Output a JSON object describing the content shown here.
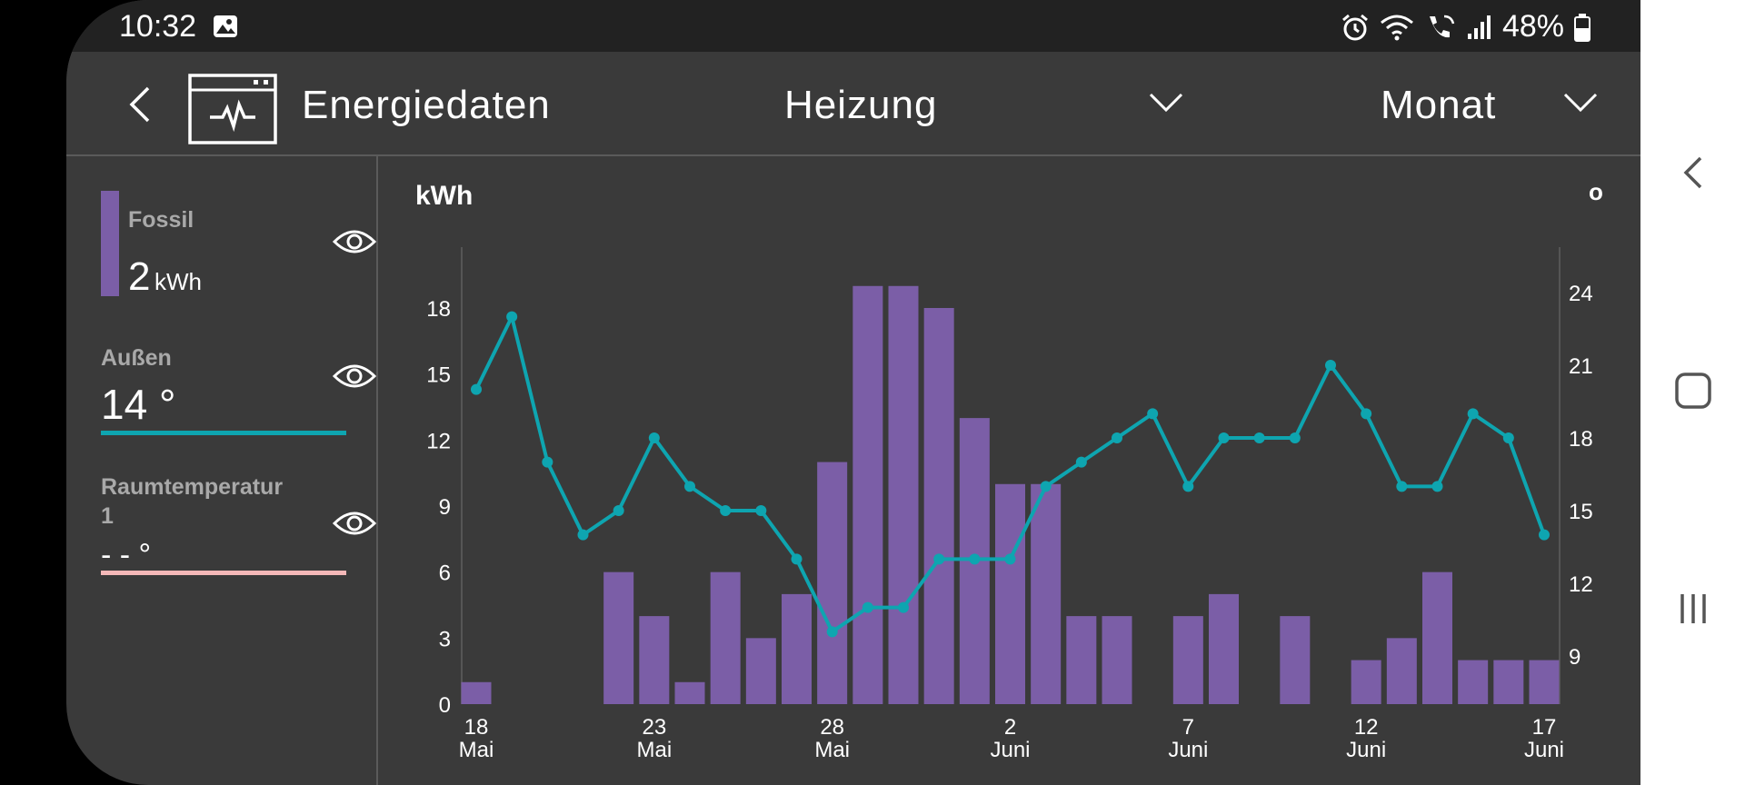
{
  "status_bar": {
    "time": "10:32",
    "battery": "48%",
    "icons": [
      "gallery-icon",
      "alarm-icon",
      "wifi-icon",
      "wifi-call-icon",
      "signal-icon",
      "battery-icon"
    ]
  },
  "header": {
    "title": "Energiedaten",
    "category": "Heizung",
    "period": "Monat",
    "icons": [
      "back-icon",
      "energy-monitor-icon",
      "chevron-down-icon"
    ]
  },
  "legend": {
    "fossil": {
      "label": "Fossil",
      "value": "2",
      "unit": "kWh",
      "color": "#7b5ea7"
    },
    "outside": {
      "label": "Außen",
      "value": "14 °",
      "color": "#0ea5b0"
    },
    "room": {
      "label": "Raumtemperatur 1",
      "value": "- - °",
      "color": "#f4b8b8"
    }
  },
  "colors": {
    "background": "#3a3a3a",
    "status_bar": "#222222",
    "bar": "#7b5ea7",
    "line": "#0ea5b0",
    "text_muted": "#a9a9a9"
  },
  "chart_data": {
    "type": "bar",
    "left_axis_label": "kWh",
    "right_axis_label": "o",
    "left_ticks": [
      "0",
      "3",
      "6",
      "9",
      "12",
      "15",
      "18"
    ],
    "right_ticks": [
      "9",
      "12",
      "15",
      "18",
      "21",
      "24"
    ],
    "ylim_left": [
      0,
      21
    ],
    "ylim_right": [
      7,
      26
    ],
    "x_ticks": [
      {
        "day": "18",
        "month": "Mai",
        "index": 0
      },
      {
        "day": "23",
        "month": "Mai",
        "index": 5
      },
      {
        "day": "28",
        "month": "Mai",
        "index": 10
      },
      {
        "day": "2",
        "month": "Juni",
        "index": 15
      },
      {
        "day": "7",
        "month": "Juni",
        "index": 20
      },
      {
        "day": "12",
        "month": "Juni",
        "index": 25
      },
      {
        "day": "17",
        "month": "Juni",
        "index": 30
      }
    ],
    "series": [
      {
        "type": "bar",
        "values": [
          1,
          0,
          0,
          0,
          6,
          4,
          1,
          6,
          3,
          5,
          11,
          19,
          19,
          18,
          13,
          10,
          10,
          4,
          4,
          0,
          4,
          5,
          0,
          4,
          0,
          2,
          3,
          6,
          2,
          2,
          2
        ]
      },
      {
        "type": "line",
        "values": [
          20,
          23,
          17,
          14,
          15,
          18,
          16,
          15,
          15,
          13,
          10,
          11,
          11,
          13,
          13,
          13,
          16,
          17,
          18,
          19,
          16,
          18,
          18,
          18,
          21,
          19,
          16,
          16,
          19,
          18,
          14
        ]
      }
    ]
  },
  "nav_bar": {
    "icons": [
      "recent-apps-icon",
      "home-icon",
      "back-nav-icon"
    ]
  }
}
